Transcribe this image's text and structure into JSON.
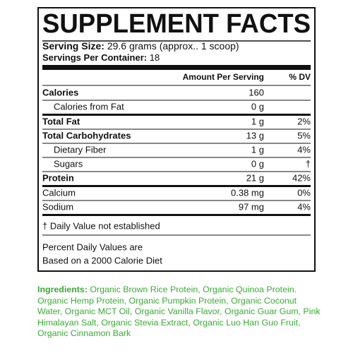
{
  "title": "SUPPLEMENT FACTS",
  "serving": {
    "size_label": "Serving Size:",
    "size_value": "29.6 grams (approx.. 1 scoop)",
    "per_container_label": "Servings Per Container:",
    "per_container_value": "18"
  },
  "table": {
    "header": [
      "Amount Per Serving",
      "% DV"
    ],
    "rows": [
      [
        "Calories",
        "160"
      ],
      [
        "Calories from Fat",
        "0 g"
      ],
      [
        "Total Fat",
        "1 g",
        "2%"
      ],
      [
        "Total Carbohydrates",
        "13 g",
        "5%"
      ],
      [
        "Dietary Fiber",
        "1 g",
        "4%"
      ],
      [
        "Sugars",
        "0 g",
        "†"
      ],
      [
        "Protein",
        "21 g",
        "42%"
      ],
      [
        "Calcium",
        "0.38 mg",
        "0%"
      ],
      [
        "Sodium",
        "97 mg",
        "4%"
      ]
    ]
  },
  "footnote": "† Daily Value not established",
  "daily_values_note": [
    "Percent Daily Values are",
    "Based on a 2000 Calorie Diet"
  ],
  "ingredients": {
    "label": "Ingredients:",
    "text": "Organic Brown Rice Protein, Organic Quinoa Protein. Organic Hemp Protein, Organic Pumpkin Protein, Organic Coconut Water, Organic MCT Oil, Organic Vanilla Flavor, Organic Guar Gum, Pink Himalayan Salt, Organic Stevia Extract, Organic Luo Han Guo Fruit, Organic Cinnamon Bark"
  }
}
